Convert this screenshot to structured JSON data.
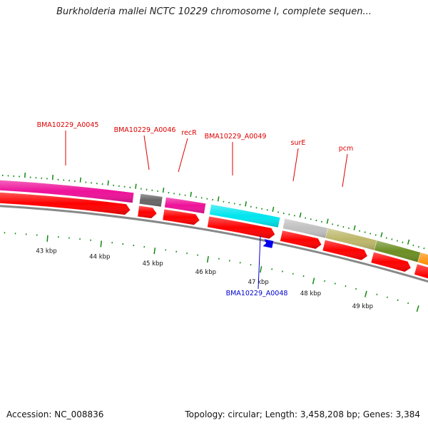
{
  "title": "Burkholderia mallei NCTC 10229 chromosome I, complete sequen...",
  "footer": {
    "accession": "Accession: NC_008836",
    "stats": "Topology: circular; Length: 3,458,208 bp; Genes: 3,384"
  },
  "colors": {
    "forward_cds": "#ff0000",
    "reverse_cds": "#0000ee",
    "forward_label": "#dd0000",
    "reverse_label": "#0000cc",
    "tick": "#118811",
    "backbone": "#888888"
  },
  "scale": {
    "labels": [
      "43 kbp",
      "44 kbp",
      "45 kbp",
      "46 kbp",
      "47 kbp",
      "48 kbp",
      "49 kbp"
    ]
  },
  "genes": [
    {
      "name": "BMA10229_A0045",
      "color": "#ee1199",
      "strand": "forward",
      "labeled": true
    },
    {
      "name": "",
      "color": "#666666",
      "strand": "forward",
      "labeled": false
    },
    {
      "name": "recR",
      "color": "#ee1199",
      "strand": "forward",
      "labeled": true
    },
    {
      "name": "BMA10229_A0049",
      "color": "#00e5ee",
      "strand": "forward",
      "labeled": true
    },
    {
      "name": "surE",
      "color": "#c0c0c0",
      "strand": "forward",
      "labeled": true
    },
    {
      "name": "pcm",
      "color": "#bdb76b",
      "strand": "forward",
      "labeled": true
    },
    {
      "name": "",
      "color": "#6b8e23",
      "strand": "forward",
      "labeled": false
    },
    {
      "name": "",
      "color": "#ff8c00",
      "strand": "forward",
      "labeled": false
    }
  ],
  "extra_labels": [
    {
      "name": "BMA10229_A0046",
      "strand": "forward"
    },
    {
      "name": "BMA10229_A0048",
      "strand": "reverse"
    }
  ]
}
